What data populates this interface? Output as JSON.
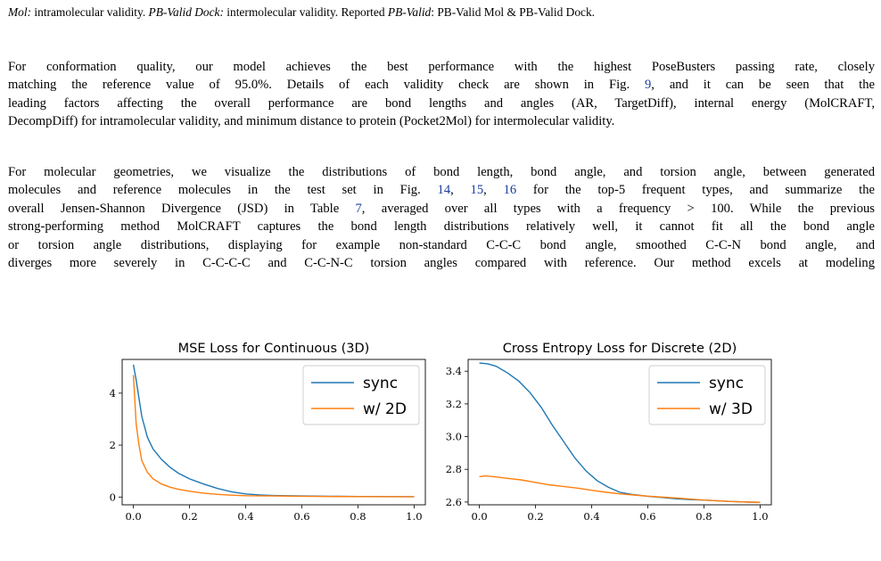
{
  "caption_top": {
    "mol_term": "Mol:",
    "mol_desc": " intramolecular validity. ",
    "dock_term": "PB-Valid Dock:",
    "dock_desc": " intermolecular validity. Reported ",
    "reported_term": "PB-Valid",
    "reported_desc": ": PB-Valid Mol & PB-Valid Dock."
  },
  "paragraph1": {
    "line1": "For conformation quality, our model achieves the best performance with the highest PoseBusters passing rate, closely",
    "line2_a": "matching the reference value of 95.0%. Details of each validity check are shown in Fig. ",
    "line2_ref": "9",
    "line2_b": ", and it can be seen that the",
    "line3": "leading factors affecting the overall performance are bond lengths and angles (AR, TargetDiff), internal energy (MolCRAFT,",
    "line4": "DecompDiff) for intramolecular validity, and minimum distance to protein (Pocket2Mol) for intermolecular validity."
  },
  "paragraph2": {
    "line1": "For molecular geometries, we visualize the distributions of bond length, bond angle, and torsion angle, between generated",
    "line2_a": "molecules and reference molecules in the test set in Fig. ",
    "line2_ref1": "14",
    "line2_sep1": ", ",
    "line2_ref2": "15",
    "line2_sep2": ", ",
    "line2_ref3": "16",
    "line2_b": " for the top-5 frequent types, and summarize the",
    "line3_a": "overall Jensen-Shannon Divergence (JSD) in Table ",
    "line3_ref": "7",
    "line3_b": ", averaged over all types with a frequency > 100. While the previous",
    "line4": "strong-performing method MolCRAFT captures the bond length distributions relatively well, it cannot fit all the bond angle",
    "line5": "or torsion angle distributions, displaying for example non-standard C-C-C bond angle, smoothed C-C-N bond angle, and",
    "line6": "diverges more severely in C-C-C-C and C-C-N-C torsion angles compared with reference. Our method excels at modeling"
  },
  "colors": {
    "series_blue": "#1f77b4",
    "series_orange": "#ff7f0e",
    "link": "#1a3c9e"
  },
  "chart_data": [
    {
      "type": "line",
      "title": "MSE Loss for Continuous (3D)",
      "xlabel": "",
      "ylabel": "",
      "xlim": [
        -0.04,
        1.04
      ],
      "ylim": [
        -0.3,
        5.3
      ],
      "xticks": [
        0.0,
        0.2,
        0.4,
        0.6,
        0.8,
        1.0
      ],
      "xtick_labels": [
        "0.0",
        "0.2",
        "0.4",
        "0.6",
        "0.8",
        "1.0"
      ],
      "yticks": [
        0,
        2,
        4
      ],
      "ytick_labels": [
        "0",
        "2",
        "4"
      ],
      "legend_position": "top-right",
      "series": [
        {
          "name": "sync",
          "x": [
            0.0,
            0.01,
            0.02,
            0.03,
            0.05,
            0.07,
            0.1,
            0.13,
            0.16,
            0.2,
            0.25,
            0.3,
            0.35,
            0.4,
            0.45,
            0.5,
            0.6,
            0.7,
            0.8,
            0.9,
            1.0
          ],
          "y": [
            5.1,
            4.5,
            3.8,
            3.1,
            2.3,
            1.85,
            1.45,
            1.15,
            0.92,
            0.7,
            0.5,
            0.33,
            0.2,
            0.12,
            0.08,
            0.06,
            0.04,
            0.03,
            0.02,
            0.015,
            0.01
          ]
        },
        {
          "name": "w/ 2D",
          "x": [
            0.0,
            0.01,
            0.02,
            0.03,
            0.05,
            0.07,
            0.1,
            0.13,
            0.16,
            0.2,
            0.25,
            0.3,
            0.35,
            0.4,
            0.5,
            0.6,
            0.7,
            0.8,
            0.9,
            1.0
          ],
          "y": [
            4.7,
            2.8,
            2.0,
            1.4,
            0.95,
            0.7,
            0.5,
            0.38,
            0.3,
            0.22,
            0.15,
            0.1,
            0.07,
            0.05,
            0.04,
            0.03,
            0.02,
            0.015,
            0.01,
            0.01
          ]
        }
      ]
    },
    {
      "type": "line",
      "title": "Cross Entropy Loss for Discrete (2D)",
      "xlabel": "",
      "ylabel": "",
      "xlim": [
        -0.04,
        1.04
      ],
      "ylim": [
        2.583,
        3.472
      ],
      "xticks": [
        0.0,
        0.2,
        0.4,
        0.6,
        0.8,
        1.0
      ],
      "xtick_labels": [
        "0.0",
        "0.2",
        "0.4",
        "0.6",
        "0.8",
        "1.0"
      ],
      "yticks": [
        2.6,
        2.8,
        3.0,
        3.2,
        3.4
      ],
      "ytick_labels": [
        "2.6",
        "2.8",
        "3.0",
        "3.2",
        "3.4"
      ],
      "legend_position": "top-right",
      "series": [
        {
          "name": "sync",
          "x": [
            0.0,
            0.03,
            0.06,
            0.1,
            0.14,
            0.18,
            0.22,
            0.26,
            0.3,
            0.34,
            0.38,
            0.42,
            0.46,
            0.5,
            0.55,
            0.6,
            0.65,
            0.7,
            0.75,
            0.8,
            0.85,
            0.9,
            0.95,
            1.0
          ],
          "y": [
            3.45,
            3.445,
            3.43,
            3.39,
            3.34,
            3.27,
            3.18,
            3.07,
            2.97,
            2.87,
            2.79,
            2.73,
            2.69,
            2.66,
            2.645,
            2.635,
            2.628,
            2.62,
            2.615,
            2.612,
            2.607,
            2.603,
            2.6,
            2.598
          ]
        },
        {
          "name": "w/ 3D",
          "x": [
            0.0,
            0.02,
            0.05,
            0.1,
            0.15,
            0.2,
            0.25,
            0.3,
            0.35,
            0.4,
            0.45,
            0.5,
            0.55,
            0.6,
            0.65,
            0.7,
            0.75,
            0.8,
            0.85,
            0.9,
            0.95,
            1.0
          ],
          "y": [
            2.755,
            2.76,
            2.755,
            2.745,
            2.735,
            2.72,
            2.705,
            2.695,
            2.685,
            2.672,
            2.66,
            2.65,
            2.643,
            2.636,
            2.63,
            2.625,
            2.618,
            2.612,
            2.607,
            2.603,
            2.6,
            2.598
          ]
        }
      ]
    }
  ]
}
